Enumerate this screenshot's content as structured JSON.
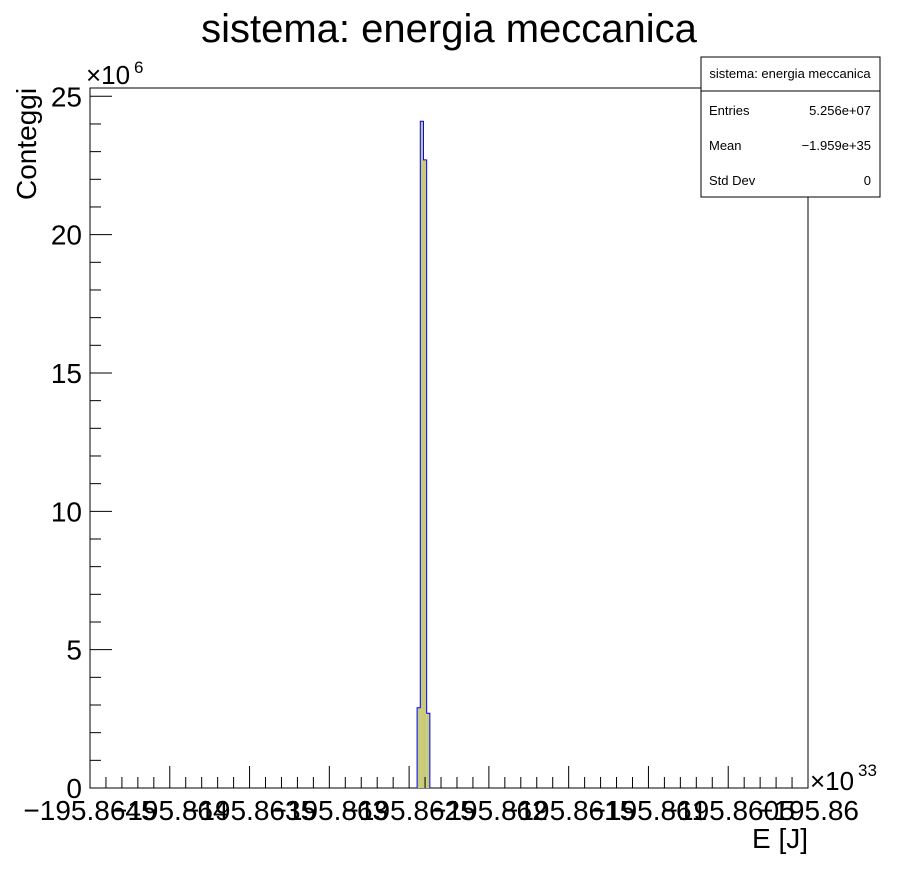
{
  "chart_data": {
    "type": "bar",
    "title": "sistema: energia meccanica",
    "xlabel": "E [J]",
    "ylabel": "Conteggi",
    "x_multiplier": "×10",
    "x_exponent": "33",
    "y_multiplier": "×10",
    "y_exponent": "6",
    "xlim": [
      -195.8645,
      -195.86
    ],
    "ylim": [
      0,
      25.3
    ],
    "x_tick_values": [
      -195.8645,
      -195.864,
      -195.8635,
      -195.863,
      -195.8625,
      -195.862,
      -195.8615,
      -195.861,
      -195.8605,
      -195.86
    ],
    "x_tick_labels": [
      "−195.8645",
      "−195.864",
      "−195.8635",
      "−195.863",
      "−195.8625",
      "−195.862",
      "−195.8615",
      "−195.861",
      "−195.8605",
      "−195.86"
    ],
    "y_tick_values": [
      0,
      5,
      10,
      15,
      20,
      25
    ],
    "y_tick_labels": [
      "0",
      "5",
      "10",
      "15",
      "20",
      "25"
    ],
    "fill_color": "#c8cc78",
    "line_color": "#0000ff",
    "bins": [
      {
        "x0": -195.86245,
        "x1": -195.86243,
        "value": 2.9
      },
      {
        "x0": -195.86243,
        "x1": -195.86241,
        "value": 24.1
      },
      {
        "x0": -195.86241,
        "x1": -195.86239,
        "value": 22.7
      },
      {
        "x0": -195.86239,
        "x1": -195.86237,
        "value": 2.7
      }
    ],
    "stats": {
      "title": "sistema: energia meccanica",
      "rows": [
        {
          "label": "Entries",
          "value": "5.256e+07"
        },
        {
          "label": "Mean",
          "value": "−1.959e+35"
        },
        {
          "label": "Std Dev",
          "value": "0"
        }
      ]
    }
  }
}
